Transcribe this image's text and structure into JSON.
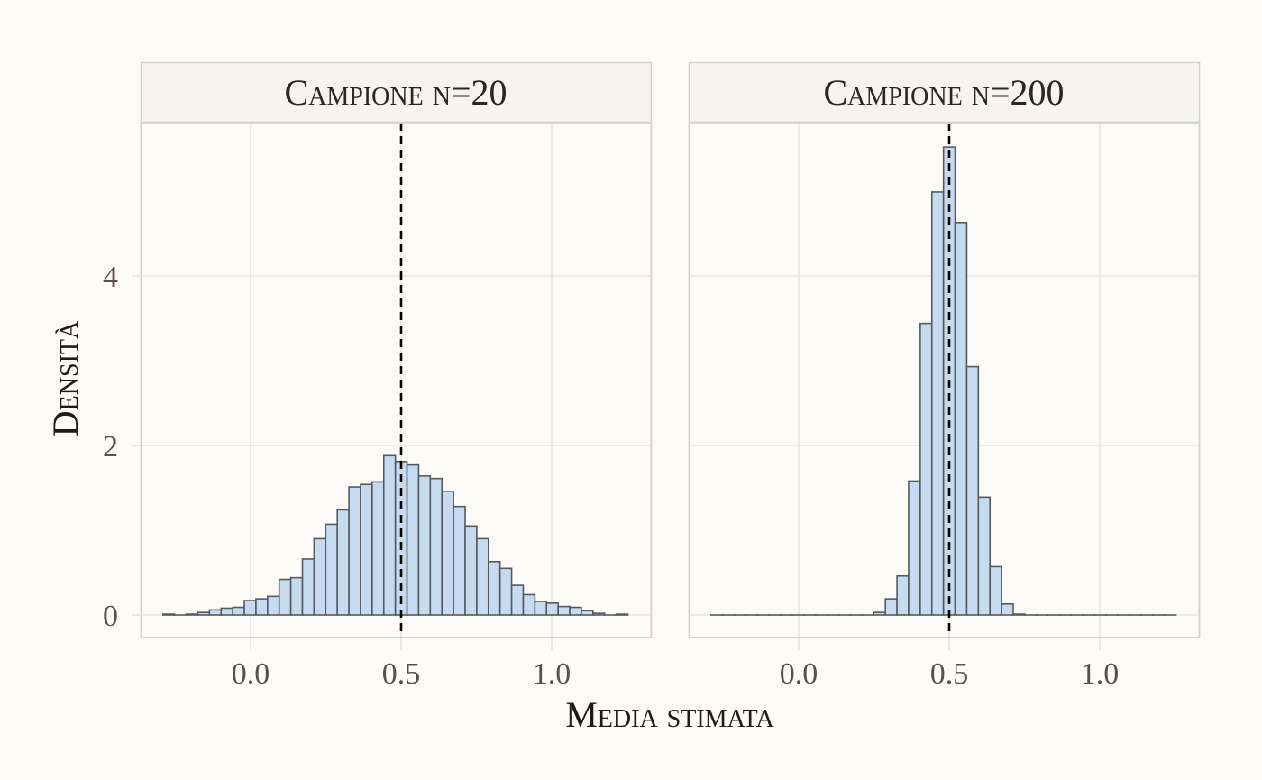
{
  "chart_data": {
    "type": "bar",
    "subtype": "faceted-histogram",
    "xlabel": "Media stimata",
    "ylabel": "Densità",
    "xlim": [
      -0.35,
      1.31
    ],
    "ylim": [
      -0.27,
      5.8
    ],
    "x_ticks": [
      0.0,
      0.5,
      1.0
    ],
    "x_tick_labels": [
      "0.0",
      "0.5",
      "1.0"
    ],
    "y_ticks": [
      0,
      2,
      4
    ],
    "y_tick_labels": [
      "0",
      "2",
      "4"
    ],
    "grid": true,
    "reference_line": {
      "x": 0.5,
      "style": "dashed",
      "color": "#000000"
    },
    "bin_start": -0.291,
    "bin_width": 0.0386,
    "colors": {
      "fill": "#c6dbef",
      "edge": "#555a60",
      "strip_fill": "#f5f4f1",
      "panel_border": "#d2d2d0",
      "grid": "#e2e1de",
      "background": "#fcfbf8"
    },
    "panels": [
      {
        "title": "Campione n=20",
        "values": [
          0.01,
          0.0,
          0.01,
          0.03,
          0.06,
          0.08,
          0.09,
          0.17,
          0.19,
          0.22,
          0.42,
          0.44,
          0.66,
          0.9,
          1.07,
          1.24,
          1.51,
          1.54,
          1.57,
          1.88,
          1.81,
          1.77,
          1.64,
          1.61,
          1.46,
          1.28,
          1.05,
          0.9,
          0.63,
          0.55,
          0.35,
          0.24,
          0.16,
          0.14,
          0.1,
          0.09,
          0.05,
          0.02,
          0.0,
          0.01
        ]
      },
      {
        "title": "Campione n=200",
        "values": [
          0,
          0,
          0,
          0,
          0,
          0,
          0,
          0,
          0,
          0,
          0,
          0,
          0,
          0,
          0.03,
          0.19,
          0.46,
          1.58,
          3.44,
          4.99,
          5.52,
          4.63,
          2.93,
          1.39,
          0.57,
          0.13,
          0.01,
          0,
          0,
          0,
          0,
          0,
          0,
          0,
          0,
          0,
          0,
          0,
          0,
          0
        ]
      }
    ]
  }
}
